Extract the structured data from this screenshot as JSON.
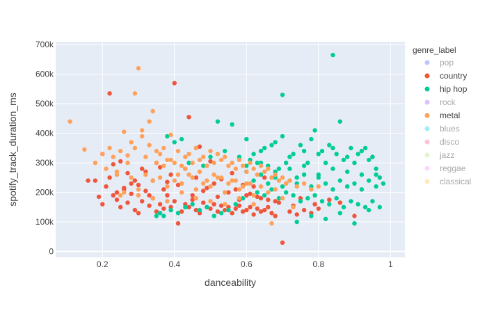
{
  "chart_data": {
    "type": "scatter",
    "title": "",
    "xlabel": "danceability",
    "ylabel": "spotify_track_duration_ms",
    "xlim": [
      0.07,
      1.04
    ],
    "ylim": [
      -20000,
      710000
    ],
    "x_ticks": [
      0.2,
      0.4,
      0.6,
      0.8,
      1
    ],
    "x_tick_labels": [
      "0.2",
      "0.4",
      "0.6",
      "0.8",
      "1"
    ],
    "y_ticks": [
      0,
      100000,
      200000,
      300000,
      400000,
      500000,
      600000,
      700000
    ],
    "y_tick_labels": [
      "0",
      "100k",
      "200k",
      "300k",
      "400k",
      "500k",
      "600k",
      "700k"
    ],
    "grid": true,
    "plot_bg": "#E5ECF6",
    "legend": {
      "title": "genre_label",
      "placement": "right",
      "items": [
        {
          "name": "pop",
          "color": "#636EFA",
          "visible": false
        },
        {
          "name": "country",
          "color": "#EF553B",
          "visible": true
        },
        {
          "name": "hip hop",
          "color": "#00CC96",
          "visible": true
        },
        {
          "name": "rock",
          "color": "#AB63FA",
          "visible": false
        },
        {
          "name": "metal",
          "color": "#FFA15A",
          "visible": true
        },
        {
          "name": "blues",
          "color": "#19D3F3",
          "visible": false
        },
        {
          "name": "disco",
          "color": "#FF6692",
          "visible": false
        },
        {
          "name": "jazz",
          "color": "#B6E880",
          "visible": false
        },
        {
          "name": "reggae",
          "color": "#FF97FF",
          "visible": false
        },
        {
          "name": "classical",
          "color": "#FECB52",
          "visible": false
        }
      ]
    },
    "series": [
      {
        "name": "country",
        "color": "#EF553B",
        "x": [
          0.16,
          0.18,
          0.19,
          0.2,
          0.21,
          0.22,
          0.23,
          0.24,
          0.25,
          0.26,
          0.27,
          0.28,
          0.29,
          0.3,
          0.31,
          0.32,
          0.33,
          0.34,
          0.35,
          0.36,
          0.37,
          0.38,
          0.39,
          0.4,
          0.41,
          0.42,
          0.43,
          0.44,
          0.45,
          0.46,
          0.47,
          0.48,
          0.49,
          0.5,
          0.51,
          0.52,
          0.53,
          0.54,
          0.55,
          0.56,
          0.57,
          0.58,
          0.59,
          0.6,
          0.61,
          0.62,
          0.63,
          0.64,
          0.65,
          0.66,
          0.67,
          0.68,
          0.7,
          0.72,
          0.74,
          0.76,
          0.78,
          0.8,
          0.83,
          0.86,
          0.9,
          0.22,
          0.31,
          0.35,
          0.29,
          0.27,
          0.4,
          0.44,
          0.47,
          0.5,
          0.53,
          0.56,
          0.59,
          0.62,
          0.65,
          0.71,
          0.24,
          0.28,
          0.33,
          0.37,
          0.41,
          0.45,
          0.48,
          0.52,
          0.55,
          0.58,
          0.61,
          0.64,
          0.68,
          0.26,
          0.3,
          0.34,
          0.38,
          0.42,
          0.46,
          0.49,
          0.51,
          0.54,
          0.57,
          0.6,
          0.63,
          0.66,
          0.69,
          0.73,
          0.2,
          0.23,
          0.25,
          0.32,
          0.36,
          0.39,
          0.43,
          0.75,
          0.79,
          0.95
        ],
        "y": [
          240000,
          240000,
          185000,
          160000,
          220000,
          535000,
          190000,
          175000,
          150000,
          210000,
          165000,
          195000,
          140000,
          130000,
          170000,
          205000,
          155000,
          180000,
          135000,
          160000,
          145000,
          190000,
          150000,
          170000,
          95000,
          135000,
          160000,
          150000,
          175000,
          140000,
          130000,
          165000,
          150000,
          145000,
          160000,
          135000,
          155000,
          140000,
          150000,
          130000,
          145000,
          155000,
          135000,
          140000,
          150000,
          125000,
          145000,
          135000,
          140000,
          150000,
          130000,
          120000,
          30000,
          135000,
          125000,
          140000,
          130000,
          145000,
          175000,
          165000,
          120000,
          250000,
          280000,
          300000,
          240000,
          265000,
          570000,
          455000,
          355000,
          305000,
          245000,
          265000,
          225000,
          220000,
          250000,
          230000,
          200000,
          230000,
          190000,
          210000,
          225000,
          190000,
          205000,
          185000,
          200000,
          175000,
          195000,
          180000,
          170000,
          215000,
          225000,
          240000,
          235000,
          230000,
          250000,
          215000,
          230000,
          200000,
          210000,
          190000,
          185000,
          175000,
          165000,
          155000,
          330000,
          295000,
          305000,
          270000,
          285000,
          260000,
          280000,
          180000,
          160000,
          320000
        ]
      },
      {
        "name": "hip hop",
        "color": "#00CC96",
        "x": [
          0.35,
          0.38,
          0.4,
          0.42,
          0.44,
          0.46,
          0.48,
          0.5,
          0.52,
          0.54,
          0.56,
          0.58,
          0.6,
          0.61,
          0.62,
          0.63,
          0.64,
          0.65,
          0.66,
          0.67,
          0.68,
          0.69,
          0.7,
          0.71,
          0.72,
          0.73,
          0.74,
          0.75,
          0.76,
          0.77,
          0.78,
          0.79,
          0.8,
          0.81,
          0.82,
          0.83,
          0.84,
          0.85,
          0.86,
          0.87,
          0.88,
          0.89,
          0.9,
          0.91,
          0.92,
          0.93,
          0.94,
          0.95,
          0.96,
          0.97,
          0.98,
          0.6,
          0.62,
          0.64,
          0.66,
          0.68,
          0.7,
          0.72,
          0.74,
          0.76,
          0.78,
          0.8,
          0.82,
          0.84,
          0.86,
          0.88,
          0.9,
          0.92,
          0.94,
          0.96,
          0.63,
          0.65,
          0.67,
          0.69,
          0.71,
          0.73,
          0.75,
          0.77,
          0.79,
          0.81,
          0.83,
          0.85,
          0.87,
          0.89,
          0.91,
          0.93,
          0.95,
          0.97,
          0.84,
          0.7,
          0.59,
          0.57,
          0.55,
          0.53,
          0.51,
          0.49,
          0.47,
          0.45,
          0.43,
          0.41,
          0.39,
          0.37,
          0.36,
          0.6,
          0.64,
          0.68,
          0.72,
          0.76,
          0.8,
          0.84,
          0.88,
          0.92,
          0.96,
          0.74,
          0.78,
          0.82,
          0.86,
          0.9,
          0.94
        ],
        "y": [
          120000,
          390000,
          370000,
          380000,
          300000,
          350000,
          290000,
          320000,
          440000,
          340000,
          430000,
          320000,
          380000,
          310000,
          330000,
          300000,
          340000,
          350000,
          290000,
          360000,
          370000,
          280000,
          390000,
          300000,
          320000,
          330000,
          250000,
          360000,
          340000,
          300000,
          380000,
          410000,
          330000,
          340000,
          300000,
          360000,
          350000,
          330000,
          440000,
          310000,
          320000,
          350000,
          300000,
          330000,
          340000,
          350000,
          310000,
          320000,
          260000,
          250000,
          230000,
          270000,
          240000,
          260000,
          230000,
          250000,
          220000,
          240000,
          230000,
          260000,
          220000,
          250000,
          230000,
          210000,
          240000,
          220000,
          230000,
          210000,
          240000,
          220000,
          200000,
          190000,
          210000,
          180000,
          200000,
          190000,
          170000,
          180000,
          190000,
          170000,
          160000,
          180000,
          150000,
          170000,
          160000,
          150000,
          170000,
          150000,
          665000,
          530000,
          180000,
          160000,
          140000,
          130000,
          120000,
          150000,
          140000,
          160000,
          150000,
          130000,
          140000,
          120000,
          130000,
          290000,
          300000,
          270000,
          280000,
          290000,
          260000,
          280000,
          270000,
          260000,
          280000,
          100000,
          120000,
          110000,
          130000,
          95000,
          140000
        ]
      },
      {
        "name": "metal",
        "color": "#FFA15A",
        "x": [
          0.11,
          0.15,
          0.18,
          0.2,
          0.21,
          0.22,
          0.23,
          0.24,
          0.25,
          0.26,
          0.27,
          0.28,
          0.29,
          0.3,
          0.31,
          0.32,
          0.33,
          0.34,
          0.35,
          0.36,
          0.37,
          0.38,
          0.39,
          0.4,
          0.41,
          0.42,
          0.43,
          0.44,
          0.45,
          0.46,
          0.47,
          0.48,
          0.49,
          0.5,
          0.51,
          0.52,
          0.53,
          0.54,
          0.55,
          0.56,
          0.57,
          0.58,
          0.59,
          0.6,
          0.61,
          0.62,
          0.63,
          0.64,
          0.65,
          0.66,
          0.67,
          0.68,
          0.69,
          0.7,
          0.71,
          0.72,
          0.74,
          0.76,
          0.78,
          0.8,
          0.31,
          0.29,
          0.33,
          0.27,
          0.35,
          0.37,
          0.39,
          0.41,
          0.43,
          0.45,
          0.47,
          0.49,
          0.51,
          0.53,
          0.55,
          0.57,
          0.59,
          0.61,
          0.25,
          0.3,
          0.34,
          0.38,
          0.42,
          0.46,
          0.5,
          0.54,
          0.58,
          0.62,
          0.66,
          0.7,
          0.24,
          0.28,
          0.32,
          0.36,
          0.4,
          0.44,
          0.48,
          0.52,
          0.56,
          0.6,
          0.64,
          0.68,
          0.26,
          0.3,
          0.34,
          0.38,
          0.42,
          0.46,
          0.5,
          0.54,
          0.58,
          0.62,
          0.67,
          0.73
        ],
        "y": [
          440000,
          345000,
          300000,
          330000,
          280000,
          350000,
          320000,
          260000,
          340000,
          405000,
          300000,
          370000,
          535000,
          620000,
          410000,
          320000,
          360000,
          475000,
          340000,
          330000,
          350000,
          310000,
          395000,
          300000,
          340000,
          290000,
          320000,
          330000,
          300000,
          350000,
          310000,
          320000,
          290000,
          340000,
          300000,
          330000,
          310000,
          320000,
          290000,
          300000,
          280000,
          310000,
          290000,
          270000,
          300000,
          280000,
          260000,
          290000,
          270000,
          280000,
          250000,
          260000,
          240000,
          250000,
          230000,
          240000,
          220000,
          230000,
          210000,
          220000,
          390000,
          350000,
          440000,
          325000,
          300000,
          290000,
          310000,
          260000,
          280000,
          250000,
          270000,
          240000,
          260000,
          250000,
          230000,
          240000,
          220000,
          230000,
          190000,
          210000,
          240000,
          220000,
          230000,
          210000,
          220000,
          200000,
          210000,
          190000,
          200000,
          180000,
          270000,
          250000,
          260000,
          250000,
          240000,
          260000,
          230000,
          250000,
          240000,
          230000,
          220000,
          210000,
          200000,
          190000,
          180000,
          170000,
          200000,
          180000,
          170000,
          160000,
          180000,
          160000,
          95000,
          150000
        ]
      }
    ]
  }
}
